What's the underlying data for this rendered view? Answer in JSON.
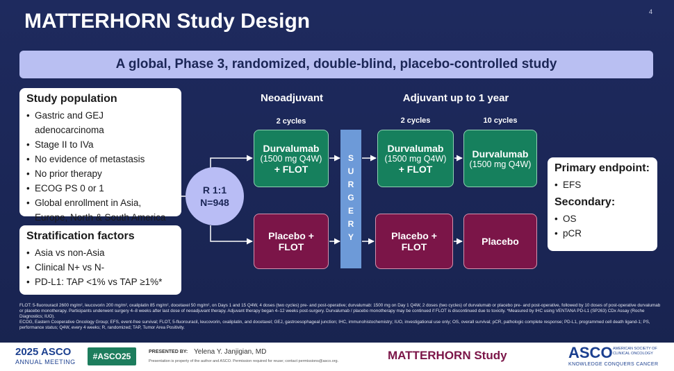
{
  "header": {
    "title": "MATTERHORN Study Design",
    "page_number": "4"
  },
  "banner": "A global, Phase 3, randomized, double-blind, placebo-controlled study",
  "study_population": {
    "title": "Study population",
    "items": [
      "Gastric and GEJ adenocarcinoma",
      "Stage II to IVa",
      "No evidence of metastasis",
      "No prior therapy",
      "ECOG PS 0 or 1",
      "Global enrollment in Asia, Europe, North & South America"
    ]
  },
  "stratification": {
    "title": "Stratification factors",
    "items": [
      "Asia vs non-Asia",
      "Clinical N+ vs N-",
      "PD-L1: TAP <1% vs TAP ≥1%*"
    ]
  },
  "randomization": {
    "ratio": "R 1:1",
    "n": "N=948"
  },
  "phases": {
    "neoadjuvant": "Neoadjuvant",
    "adjuvant": "Adjuvant up to 1 year"
  },
  "cycles": [
    "2 cycles",
    "2 cycles",
    "10 cycles"
  ],
  "surgery": "SURGERY",
  "durvalumab_arm": [
    {
      "drug": "Durvalumab",
      "dose": "(1500 mg Q4W)",
      "combo": "+ FLOT"
    },
    {
      "drug": "Durvalumab",
      "dose": "(1500 mg Q4W)",
      "combo": "+ FLOT"
    },
    {
      "drug": "Durvalumab",
      "dose": "(1500 mg Q4W)"
    }
  ],
  "placebo_arm": [
    "Placebo + FLOT",
    "Placebo + FLOT",
    "Placebo"
  ],
  "endpoints": {
    "primary_title": "Primary endpoint:",
    "primary": [
      "EFS"
    ],
    "secondary_title": "Secondary:",
    "secondary": [
      "OS",
      "pCR"
    ]
  },
  "footnotes": [
    "FLOT: 5-fluorouracil 2600 mg/m², leucovorin 200 mg/m², oxaliplatin 85 mg/m², docetaxel 50 mg/m², on Days 1 and 15 Q4W, 4 doses (two cycles) pre- and post-operative; durvalumab: 1500 mg on Day 1 Q4W, 2 doses (two cycles) of durvalumab or placebo pre- and post-operative, followed by 10 doses of post-operative durvalumab or placebo monotherapy. Participants underwent surgery 4–8 weeks after last dose of neoadjuvant therapy. Adjuvant therapy began 4–12 weeks post-surgery. Durvalumab / placebo monotherapy may be continued if FLOT is discontinued due to toxicity. *Measured by IHC using VENTANA PD-L1 (SP263) CDx Assay (Roche Diagnostics; IUO).",
    "ECOG, Eastern Cooperative Oncology Group; EFS, event-free survival; FLOT, 5-fluorouracil, leucovorin, oxaliplatin, and docetaxel; GEJ, gastroesophageal junction; IHC, immunohistochemistry; IUO, investigational use only; OS, overall survival; pCR, pathologic complete response; PD-L1, programmed cell death ligand-1; PS, performance status; Q4W, every 4 weeks; R, randomized; TAP, Tumor Area Positivity."
  ],
  "footer": {
    "meeting_year": "2025 ASCO",
    "meeting_name": "ANNUAL MEETING",
    "hashtag": "#ASCO25",
    "presented_by": "PRESENTED BY:",
    "presenter": "Yelena Y. Janjigian, MD",
    "permission": "Presentation is property of the author and ASCO. Permission required for reuse; contact permissions@asco.org.",
    "study": "MATTERHORN Study",
    "logo": "ASCO",
    "society": "AMERICAN SOCIETY OF CLINICAL ONCOLOGY",
    "tagline": "KNOWLEDGE CONQUERS CANCER"
  }
}
